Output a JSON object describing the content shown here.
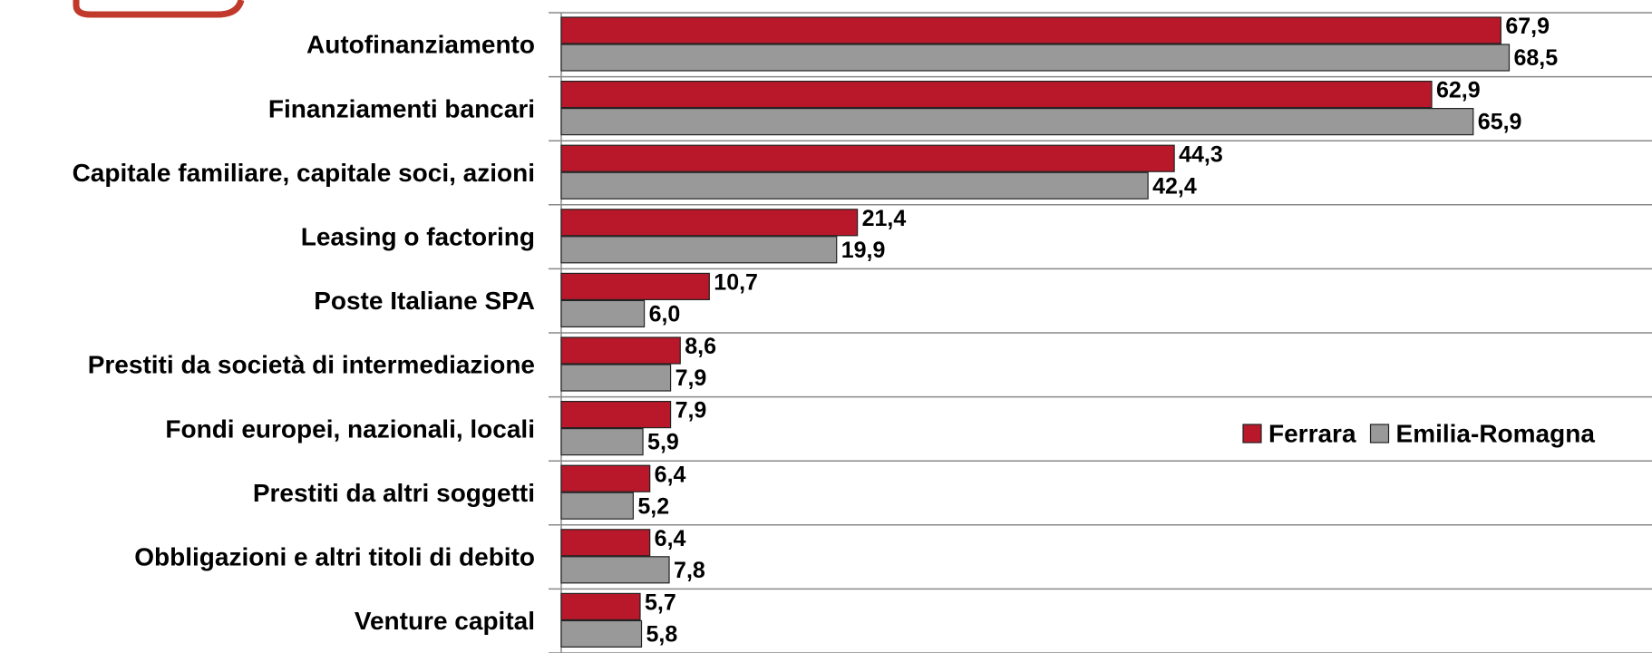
{
  "chart_data": {
    "type": "bar",
    "orientation": "horizontal",
    "categories": [
      "Autofinanziamento",
      "Finanziamenti bancari",
      "Capitale familiare, capitale soci, azioni",
      "Leasing o factoring",
      "Poste Italiane SPA",
      "Prestiti da società di intermediazione",
      "Fondi europei, nazionali, locali",
      "Prestiti da altri soggetti",
      "Obbligazioni e altri titoli di debito",
      "Venture capital"
    ],
    "series": [
      {
        "name": "Ferrara",
        "color": "#b8182a",
        "values": [
          67.9,
          62.9,
          44.3,
          21.4,
          10.7,
          8.6,
          7.9,
          6.4,
          6.4,
          5.7
        ],
        "value_labels": [
          "67,9",
          "62,9",
          "44,3",
          "21,4",
          "10,7",
          "8,6",
          "7,9",
          "6,4",
          "6,4",
          "5,7"
        ]
      },
      {
        "name": "Emilia-Romagna",
        "color": "#999999",
        "values": [
          68.5,
          65.9,
          42.4,
          19.9,
          6.0,
          7.9,
          5.9,
          5.2,
          7.8,
          5.8
        ],
        "value_labels": [
          "68,5",
          "65,9",
          "42,4",
          "19,9",
          "6,0",
          "7,9",
          "5,9",
          "5,2",
          "7,8",
          "5,8"
        ]
      }
    ],
    "xlim": [
      0,
      80
    ],
    "legend": "right"
  }
}
